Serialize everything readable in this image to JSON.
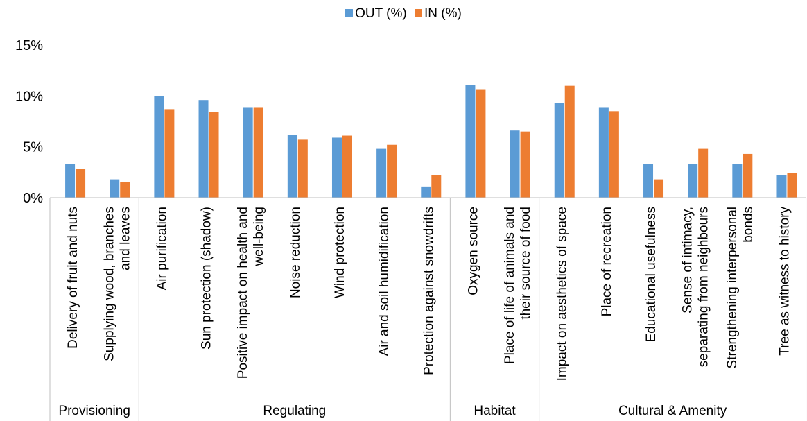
{
  "chart_data": {
    "type": "bar",
    "title": "",
    "xlabel": "",
    "ylabel": "",
    "ylim": [
      0,
      15
    ],
    "yticks": [
      0,
      5,
      10,
      15
    ],
    "ytick_labels": [
      "0%",
      "5%",
      "10%",
      "15%"
    ],
    "grid": false,
    "legend_position": "top-center",
    "categories": [
      [
        "Delivery of fruit and nuts"
      ],
      [
        "Supplying wood, branches",
        "and leaves"
      ],
      [
        "Air purification"
      ],
      [
        "Sun protection (shadow)"
      ],
      [
        "Positive impact on health and",
        "well-being"
      ],
      [
        "Noise reduction"
      ],
      [
        "Wind protection"
      ],
      [
        "Air and soil humidification"
      ],
      [
        "Protection against snowdrifts"
      ],
      [
        "Oxygen source"
      ],
      [
        "Place of life of animals and",
        "their source of food"
      ],
      [
        "Impact on aesthetics of space"
      ],
      [
        "Place of recreation"
      ],
      [
        "Educational usefulness"
      ],
      [
        "Sense of intimacy,",
        "separating from neighbours"
      ],
      [
        "Strengthening interpersonal",
        "bonds"
      ],
      [
        "Tree as witness to history"
      ]
    ],
    "groups": [
      {
        "name": "Provisioning",
        "start": 0,
        "count": 2
      },
      {
        "name": "Regulating",
        "start": 2,
        "count": 7
      },
      {
        "name": "Habitat",
        "start": 9,
        "count": 2
      },
      {
        "name": "Cultural & Amenity",
        "start": 11,
        "count": 6
      }
    ],
    "series": [
      {
        "name": "OUT (%)",
        "color": "#5b9bd5",
        "values": [
          3.3,
          1.8,
          10.0,
          9.6,
          8.9,
          6.2,
          5.9,
          4.8,
          1.1,
          11.1,
          6.6,
          9.3,
          8.9,
          3.3,
          3.3,
          3.3,
          2.2
        ]
      },
      {
        "name": "IN (%)",
        "color": "#ed7d31",
        "values": [
          2.8,
          1.5,
          8.7,
          8.4,
          8.9,
          5.7,
          6.1,
          5.2,
          2.2,
          10.6,
          6.5,
          11.0,
          8.5,
          1.8,
          4.8,
          4.3,
          2.4
        ]
      }
    ]
  }
}
